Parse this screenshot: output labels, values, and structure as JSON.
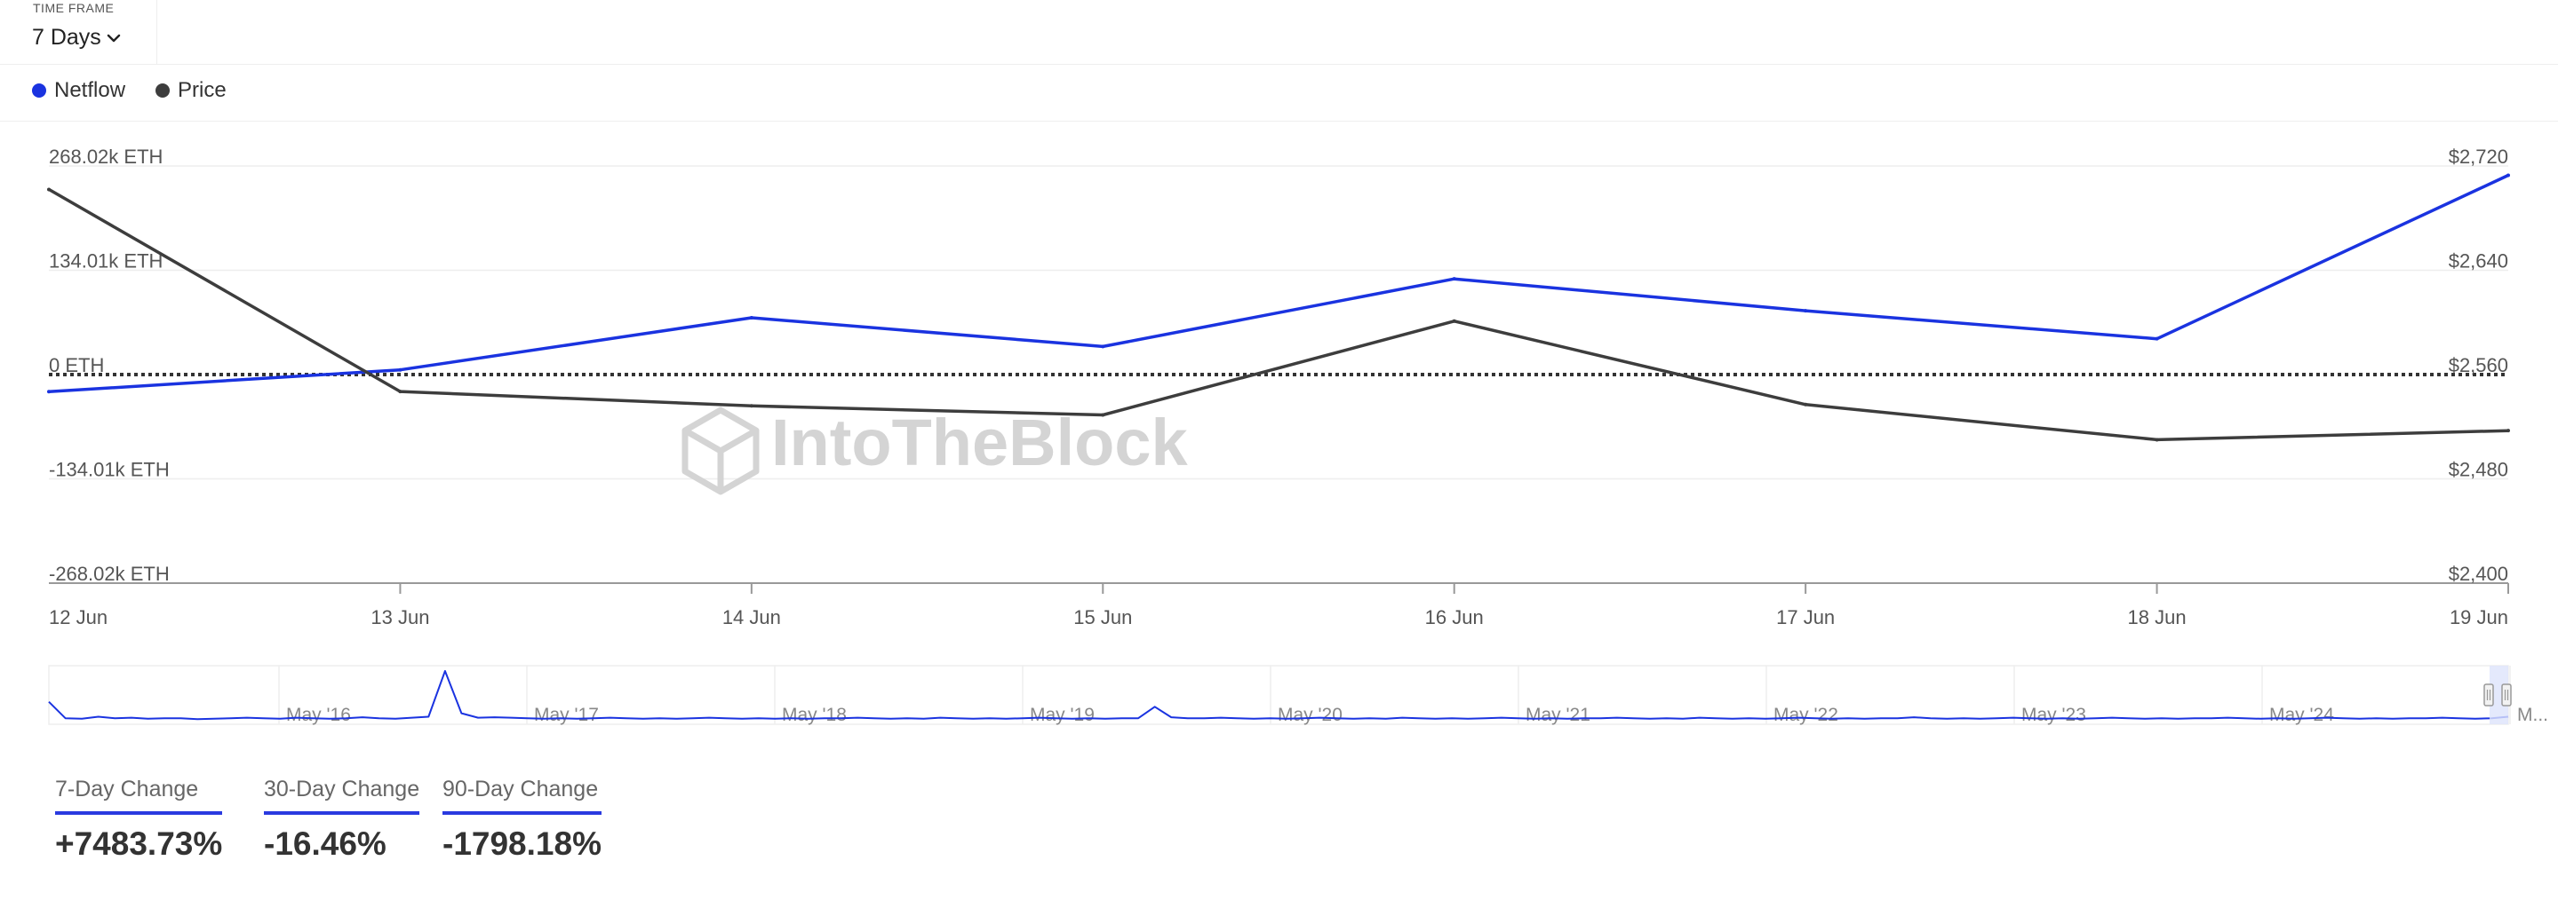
{
  "time_frame": {
    "label": "TIME FRAME",
    "value": "7 Days"
  },
  "legend": [
    {
      "label": "Netflow",
      "color": "#1a33e0"
    },
    {
      "label": "Price",
      "color": "#3d3d3d"
    }
  ],
  "watermark": "IntoTheBlock",
  "chart_data": {
    "type": "line",
    "x": [
      "12 Jun",
      "13 Jun",
      "14 Jun",
      "15 Jun",
      "16 Jun",
      "17 Jun",
      "18 Jun",
      "19 Jun"
    ],
    "series": [
      {
        "name": "Netflow",
        "axis": "left",
        "unit": "ETH",
        "color": "#1a33e0",
        "values": [
          -22000,
          6000,
          73000,
          36000,
          123000,
          82000,
          46000,
          256000
        ]
      },
      {
        "name": "Price",
        "axis": "right",
        "unit": "USD",
        "color": "#3d3d3d",
        "values": [
          2702,
          2547,
          2536,
          2529,
          2601,
          2537,
          2510,
          2517
        ]
      }
    ],
    "left_axis": {
      "ticks": [
        "268.02k ETH",
        "134.01k ETH",
        "0 ETH",
        "-134.01k ETH",
        "-268.02k ETH"
      ],
      "range": [
        -268020,
        268020
      ]
    },
    "right_axis": {
      "ticks": [
        "$2,720",
        "$2,640",
        "$2,560",
        "$2,480",
        "$2,400"
      ],
      "range": [
        2400,
        2720
      ]
    },
    "zero_line": "dotted",
    "grid": true,
    "legend_position": "top-left",
    "navigator": {
      "labels": [
        "May '16",
        "May '17",
        "May '18",
        "May '19",
        "May '20",
        "May '21",
        "May '22",
        "May '23",
        "May '24",
        "M..."
      ],
      "values": [
        0.38,
        0.05,
        0.04,
        0.08,
        0.05,
        0.06,
        0.04,
        0.05,
        0.05,
        0.03,
        0.04,
        0.05,
        0.06,
        0.05,
        0.04,
        0.06,
        0.05,
        0.04,
        0.05,
        0.07,
        0.05,
        0.04,
        0.06,
        0.08,
        1.0,
        0.15,
        0.06,
        0.07,
        0.06,
        0.05,
        0.04,
        0.05,
        0.04,
        0.05,
        0.06,
        0.05,
        0.04,
        0.05,
        0.04,
        0.05,
        0.06,
        0.05,
        0.04,
        0.05,
        0.04,
        0.05,
        0.04,
        0.05,
        0.05,
        0.06,
        0.05,
        0.04,
        0.05,
        0.04,
        0.06,
        0.05,
        0.04,
        0.05,
        0.04,
        0.05,
        0.06,
        0.05,
        0.04,
        0.05,
        0.04,
        0.05,
        0.05,
        0.28,
        0.07,
        0.05,
        0.05,
        0.06,
        0.05,
        0.04,
        0.05,
        0.04,
        0.05,
        0.06,
        0.05,
        0.04,
        0.05,
        0.04,
        0.06,
        0.05,
        0.04,
        0.05,
        0.04,
        0.05,
        0.06,
        0.05,
        0.04,
        0.05,
        0.04,
        0.05,
        0.05,
        0.06,
        0.05,
        0.04,
        0.05,
        0.04,
        0.06,
        0.05,
        0.04,
        0.05,
        0.04,
        0.05,
        0.06,
        0.05,
        0.04,
        0.05,
        0.04,
        0.05,
        0.05,
        0.07,
        0.05,
        0.04,
        0.05,
        0.04,
        0.05,
        0.06,
        0.05,
        0.04,
        0.05,
        0.04,
        0.05,
        0.06,
        0.05,
        0.04,
        0.05,
        0.04,
        0.05,
        0.05,
        0.06,
        0.05,
        0.04,
        0.05,
        0.04,
        0.05,
        0.06,
        0.05,
        0.04,
        0.05,
        0.04,
        0.05,
        0.05,
        0.06,
        0.05,
        0.04,
        0.05,
        0.08
      ]
    }
  },
  "stats": [
    {
      "label": "7-Day Change",
      "value": "+7483.73%"
    },
    {
      "label": "30-Day Change",
      "value": "-16.46%"
    },
    {
      "label": "90-Day Change",
      "value": "-1798.18%"
    }
  ]
}
